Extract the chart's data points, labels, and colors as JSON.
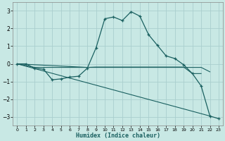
{
  "xlabel": "Humidex (Indice chaleur)",
  "xlim": [
    -0.5,
    23.5
  ],
  "ylim": [
    -3.5,
    3.5
  ],
  "yticks": [
    -3,
    -2,
    -1,
    0,
    1,
    2,
    3
  ],
  "xticks": [
    0,
    1,
    2,
    3,
    4,
    5,
    6,
    7,
    8,
    9,
    10,
    11,
    12,
    13,
    14,
    15,
    16,
    17,
    18,
    19,
    20,
    21,
    22,
    23
  ],
  "bg_color": "#c8e8e4",
  "grid_color": "#aacece",
  "line_color": "#1a6060",
  "line1_x": [
    0,
    1,
    2,
    3,
    4,
    5,
    6,
    7,
    8,
    9,
    10,
    11,
    12,
    13,
    14,
    15,
    16,
    17,
    18,
    19,
    20,
    21,
    22,
    23
  ],
  "line1_y": [
    0.0,
    0.0,
    -0.25,
    -0.3,
    -0.9,
    -0.85,
    -0.75,
    -0.7,
    -0.25,
    0.9,
    2.55,
    2.65,
    2.45,
    2.95,
    2.7,
    1.65,
    1.05,
    0.45,
    0.3,
    -0.05,
    -0.55,
    -1.25,
    -2.95,
    -3.1
  ],
  "line2_x": [
    0,
    2,
    3,
    4,
    5,
    6,
    7,
    8,
    9,
    10,
    11,
    12,
    13,
    14,
    15,
    16,
    17,
    18,
    19,
    20,
    21,
    22
  ],
  "line2_y": [
    0.0,
    -0.2,
    -0.2,
    -0.2,
    -0.2,
    -0.2,
    -0.2,
    -0.2,
    -0.2,
    -0.2,
    -0.2,
    -0.2,
    -0.2,
    -0.2,
    -0.2,
    -0.2,
    -0.2,
    -0.2,
    -0.2,
    -0.2,
    -0.2,
    -0.45
  ],
  "line3_x": [
    0,
    22
  ],
  "line3_y": [
    0.0,
    -2.95
  ],
  "line4_x": [
    0,
    8,
    9,
    10,
    11,
    12,
    13,
    14,
    15,
    16,
    17,
    18,
    19,
    20,
    21
  ],
  "line4_y": [
    0.0,
    -0.2,
    -0.18,
    -0.18,
    -0.18,
    -0.18,
    -0.18,
    -0.18,
    -0.18,
    -0.18,
    -0.18,
    -0.18,
    -0.18,
    -0.55,
    -0.55
  ]
}
